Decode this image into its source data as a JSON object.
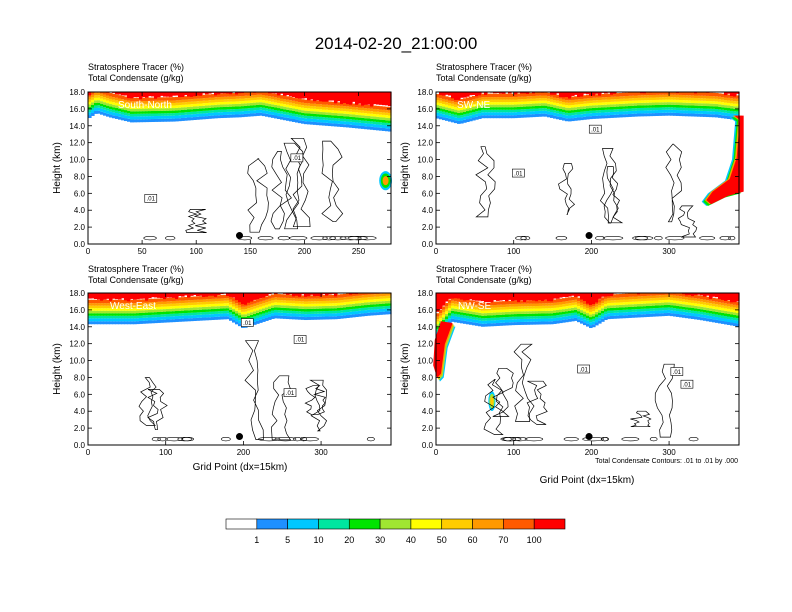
{
  "figure_title": "2014-02-20_21:00:00",
  "header_line1": "Stratosphere Tracer   (%)",
  "header_line2": "Total Condensate   (g/kg)",
  "ylabel": "Height (km)",
  "xlabel": "Grid Point (dx=15km)",
  "contour_note": "Total Condensate Contours: .01 to .01 by .000",
  "contour_label": ".01",
  "colors": {
    "levels": [
      "#ffffff",
      "#1e90ff",
      "#00c8ff",
      "#00e6a0",
      "#00e400",
      "#a0e632",
      "#ffff00",
      "#ffcc00",
      "#ff9900",
      "#ff5a00",
      "#ff0000"
    ]
  },
  "colorbar": {
    "labels": [
      "1",
      "5",
      "10",
      "20",
      "30",
      "40",
      "50",
      "60",
      "70",
      "100"
    ]
  },
  "chart_data": [
    {
      "type": "heatmap",
      "panel_label": "South-North",
      "title": "Stratosphere Tracer (%) / Total Condensate (g/kg)",
      "xlabel": "",
      "ylabel": "Height (km)",
      "xlim": [
        0,
        280
      ],
      "ylim": [
        0,
        18
      ],
      "x_ticks": [
        0,
        50,
        100,
        150,
        200,
        250
      ],
      "y_ticks": [
        "0.0",
        "2.0",
        "4.0",
        "6.0",
        "8.0",
        "10.0",
        "12.0",
        "14.0",
        "16.0",
        "18.0"
      ],
      "tropopause_km": [
        [
          0,
          14.8
        ],
        [
          8,
          15.5
        ],
        [
          20,
          15.0
        ],
        [
          40,
          14.4
        ],
        [
          80,
          14.5
        ],
        [
          120,
          14.9
        ],
        [
          140,
          15.0
        ],
        [
          160,
          15.2
        ],
        [
          200,
          14.2
        ],
        [
          240,
          13.8
        ],
        [
          280,
          13.3
        ]
      ],
      "marker": {
        "x": 140,
        "y": 1.0
      },
      "contour_labels": [
        {
          "x": 58,
          "y": 5.4
        },
        {
          "x": 193,
          "y": 10.2
        }
      ]
    },
    {
      "type": "heatmap",
      "panel_label": "SW-NE",
      "title": "Stratosphere Tracer (%) / Total Condensate (g/kg)",
      "xlabel": "",
      "ylabel": "Height (km)",
      "xlim": [
        0,
        390
      ],
      "ylim": [
        0,
        18
      ],
      "x_ticks": [
        0,
        100,
        200,
        300
      ],
      "y_ticks": [
        "0.0",
        "2.0",
        "4.0",
        "6.0",
        "8.0",
        "10.0",
        "12.0",
        "14.0",
        "16.0",
        "18.0"
      ],
      "tropopause_km": [
        [
          0,
          14.9
        ],
        [
          30,
          14.2
        ],
        [
          60,
          14.9
        ],
        [
          100,
          14.9
        ],
        [
          140,
          15.1
        ],
        [
          170,
          14.5
        ],
        [
          200,
          14.8
        ],
        [
          260,
          15.1
        ],
        [
          300,
          15.2
        ],
        [
          360,
          15.0
        ],
        [
          385,
          14.7
        ]
      ],
      "marker": {
        "x": 197,
        "y": 1.0
      },
      "contour_labels": [
        {
          "x": 106,
          "y": 8.4
        },
        {
          "x": 205,
          "y": 13.6
        }
      ]
    },
    {
      "type": "heatmap",
      "panel_label": "West-East",
      "title": "Stratosphere Tracer (%) / Total Condensate (g/kg)",
      "xlabel": "Grid Point (dx=15km)",
      "ylabel": "Height (km)",
      "xlim": [
        0,
        390
      ],
      "ylim": [
        0,
        18
      ],
      "x_ticks": [
        0,
        100,
        200,
        300
      ],
      "y_ticks": [
        "0.0",
        "2.0",
        "4.0",
        "6.0",
        "8.0",
        "10.0",
        "12.0",
        "14.0",
        "16.0",
        "18.0"
      ],
      "tropopause_km": [
        [
          0,
          14.3
        ],
        [
          60,
          14.3
        ],
        [
          120,
          14.6
        ],
        [
          180,
          14.9
        ],
        [
          200,
          13.8
        ],
        [
          220,
          14.4
        ],
        [
          240,
          15.0
        ],
        [
          280,
          14.8
        ],
        [
          320,
          14.9
        ],
        [
          360,
          15.3
        ],
        [
          390,
          15.5
        ]
      ],
      "marker": {
        "x": 195,
        "y": 1.0
      },
      "contour_labels": [
        {
          "x": 205,
          "y": 14.5
        },
        {
          "x": 273,
          "y": 12.5
        },
        {
          "x": 260,
          "y": 6.2
        }
      ]
    },
    {
      "type": "heatmap",
      "panel_label": "NW-SE",
      "title": "Stratosphere Tracer (%) / Total Condensate (g/kg)",
      "xlabel": "Grid Point (dx=15km)",
      "ylabel": "Height (km)",
      "xlim": [
        0,
        390
      ],
      "ylim": [
        0,
        18
      ],
      "x_ticks": [
        0,
        100,
        200,
        300
      ],
      "y_ticks": [
        "0.0",
        "2.0",
        "4.0",
        "6.0",
        "8.0",
        "10.0",
        "12.0",
        "14.0",
        "16.0",
        "18.0"
      ],
      "tropopause_km": [
        [
          0,
          12.5
        ],
        [
          20,
          14.6
        ],
        [
          60,
          14.0
        ],
        [
          100,
          14.2
        ],
        [
          150,
          14.3
        ],
        [
          180,
          14.7
        ],
        [
          200,
          13.8
        ],
        [
          220,
          14.9
        ],
        [
          300,
          15.3
        ],
        [
          340,
          14.8
        ],
        [
          390,
          14.0
        ]
      ],
      "marker": {
        "x": 197,
        "y": 1.0
      },
      "contour_labels": [
        {
          "x": 190,
          "y": 9.0
        },
        {
          "x": 310,
          "y": 8.7
        },
        {
          "x": 323,
          "y": 7.2
        }
      ]
    }
  ]
}
